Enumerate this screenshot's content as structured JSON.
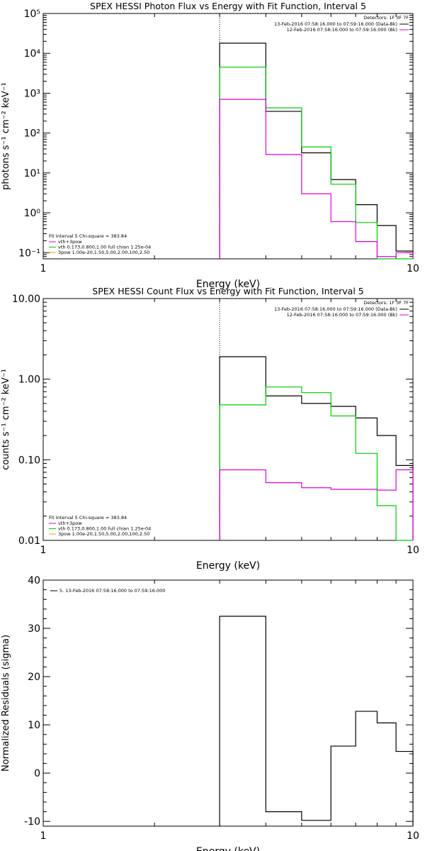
{
  "chart_data": [
    {
      "type": "line",
      "title": "SPEX HESSI Photon Flux vs Energy with Fit Function, Interval 5",
      "xlabel": "Energy (keV)",
      "ylabel": "photons s⁻¹ cm⁻² keV⁻¹",
      "xscale": "log",
      "yscale": "log",
      "xlim": [
        1,
        10
      ],
      "ylim": [
        0.07,
        100000
      ],
      "x_ticks": [
        {
          "value": 1,
          "label": "1"
        },
        {
          "value": 10,
          "label": "10"
        }
      ],
      "y_ticks": [
        {
          "value": 0.1,
          "label": "10⁻¹"
        },
        {
          "value": 1,
          "label": "10⁰"
        },
        {
          "value": 10,
          "label": "10¹"
        },
        {
          "value": 100,
          "label": "10²"
        },
        {
          "value": 1000,
          "label": "10³"
        },
        {
          "value": 10000,
          "label": "10⁴"
        },
        {
          "value": 100000,
          "label": "10⁵"
        }
      ],
      "vline": 3.0,
      "bin_edges": [
        3.0,
        4.0,
        5.0,
        6.0,
        7.0,
        8.0,
        9.0,
        10.0
      ],
      "series": [
        {
          "color": "#000000",
          "values": [
            18000,
            350,
            32,
            6.8,
            1.6,
            0.48,
            0.11
          ]
        },
        {
          "color": "#00cc00",
          "values": [
            4500,
            430,
            45,
            5.2,
            0.57,
            0.05,
            0.05
          ]
        },
        {
          "color": "#dd00dd",
          "values": [
            700,
            29,
            3.0,
            0.6,
            0.19,
            0.08,
            0.1
          ]
        }
      ],
      "header": {
        "detectors": "Detectors: 1F 3F 7F",
        "lines": [
          {
            "text": "13-Feb-2016 07:58:16.000 to 07:59:16.000 (Data-Bk)",
            "color": "#000000"
          },
          {
            "text": "12-Feb-2016 07:58:16.000 to 07:59:16.000 (Bk)",
            "color": "#dd00dd"
          }
        ]
      },
      "legend": {
        "title": "Fit Interval 5   Chi-square = 383.84",
        "entries": [
          {
            "text": "vth+3pow",
            "color": "#dd00dd"
          },
          {
            "text": "vth 0.173,0.800,1.00  full chian 1.25e-04",
            "color": "#00cc00"
          },
          {
            "text": "3pow 1.00e-20,1.50,5.00,2.00,100,2.50",
            "color": "#e8a000"
          }
        ]
      }
    },
    {
      "type": "line",
      "title": "SPEX HESSI Count Flux vs Energy with Fit Function, Interval 5",
      "xlabel": "Energy (keV)",
      "ylabel": "counts s⁻¹ cm⁻² keV⁻¹",
      "xscale": "log",
      "yscale": "log",
      "xlim": [
        1,
        10
      ],
      "ylim": [
        0.01,
        10
      ],
      "x_ticks": [
        {
          "value": 1,
          "label": "1"
        },
        {
          "value": 10,
          "label": "10"
        }
      ],
      "y_ticks": [
        {
          "value": 0.01,
          "label": "0.01"
        },
        {
          "value": 0.1,
          "label": "0.10"
        },
        {
          "value": 1,
          "label": "1.00"
        },
        {
          "value": 10,
          "label": "10.00"
        }
      ],
      "vline": 3.0,
      "bin_edges": [
        3.0,
        4.0,
        5.0,
        6.0,
        7.0,
        8.0,
        9.0,
        10.0
      ],
      "series": [
        {
          "color": "#000000",
          "values": [
            1.9,
            0.62,
            0.5,
            0.46,
            0.33,
            0.2,
            0.085
          ]
        },
        {
          "color": "#00cc00",
          "values": [
            0.48,
            0.8,
            0.68,
            0.35,
            0.12,
            0.027,
            0.009
          ]
        },
        {
          "color": "#dd00dd",
          "values": [
            0.075,
            0.052,
            0.045,
            0.043,
            0.043,
            0.042,
            0.075
          ]
        }
      ],
      "header": {
        "detectors": "Detectors: 1F 3F 7F",
        "lines": [
          {
            "text": "13-Feb-2016 07:58:16.000 to 07:59:16.000 (Data-Bk)",
            "color": "#000000"
          },
          {
            "text": "12-Feb-2016 07:58:16.000 to 07:59:16.000 (Bk)",
            "color": "#dd00dd"
          }
        ]
      },
      "legend": {
        "title": "Fit Interval 5   Chi-square = 383.84",
        "entries": [
          {
            "text": "vth+3pow",
            "color": "#dd00dd"
          },
          {
            "text": "vth 0.173,0.800,1.00  full chian 1.25e-04",
            "color": "#00cc00"
          },
          {
            "text": "3pow 1.00e-20,1.50,5.00,2.00,100,2.50",
            "color": "#e8a000"
          }
        ]
      }
    },
    {
      "type": "line",
      "title": "",
      "xlabel": "Energy (keV)",
      "ylabel": "Normalized Residuals (sigma)",
      "xscale": "log",
      "yscale": "linear",
      "xlim": [
        1,
        10
      ],
      "ylim": [
        -11,
        40
      ],
      "x_ticks": [
        {
          "value": 1,
          "label": "1"
        },
        {
          "value": 10,
          "label": "10"
        }
      ],
      "y_ticks": [
        {
          "value": -10,
          "label": "-10"
        },
        {
          "value": 0,
          "label": "0"
        },
        {
          "value": 10,
          "label": "10"
        },
        {
          "value": 20,
          "label": "20"
        },
        {
          "value": 30,
          "label": "30"
        },
        {
          "value": 40,
          "label": "40"
        }
      ],
      "bin_edges": [
        3.0,
        4.0,
        5.0,
        6.0,
        7.0,
        8.0,
        9.0,
        10.0
      ],
      "baseline": -11,
      "series": [
        {
          "color": "#000000",
          "values": [
            32.5,
            -8.0,
            -9.8,
            5.6,
            12.8,
            10.4,
            4.5
          ]
        }
      ],
      "legend": {
        "entries": [
          {
            "text": "5. 13-Feb-2016 07:58:16.000 to 07:59:16.000",
            "color": "#000000"
          }
        ]
      }
    }
  ]
}
